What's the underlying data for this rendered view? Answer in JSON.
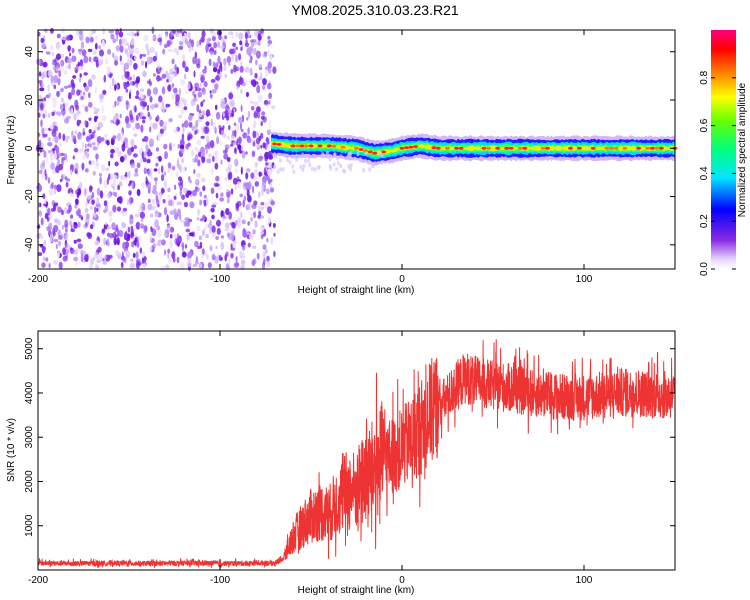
{
  "title": "YM08.2025.310.03.23.R21",
  "chart_data": [
    {
      "type": "heatmap",
      "xlabel": "Height of straight line (km)",
      "ylabel": "Frequency (Hz)",
      "xlim": [
        -200,
        150
      ],
      "ylim": [
        -50,
        49
      ],
      "xticks": [
        -200,
        -100,
        0,
        100
      ],
      "xtick_labels": [
        "-200",
        "-100",
        "0",
        "100"
      ],
      "yticks": [
        -40,
        -20,
        0,
        20,
        40
      ],
      "ytick_labels": [
        "-40",
        "-20",
        "0",
        "20",
        "40"
      ],
      "noise_region_x": [
        -200,
        -70
      ],
      "signal_start_x": -72,
      "carrier_frequency_trace": {
        "x": [
          -72,
          -60,
          -40,
          -25,
          -15,
          -5,
          0,
          10,
          20,
          40,
          60,
          80,
          100,
          120,
          150
        ],
        "y": [
          2,
          1,
          1,
          0,
          -2,
          -1,
          0,
          1,
          0,
          0,
          0,
          0,
          0,
          0,
          0
        ]
      },
      "colorbar": {
        "label": "Normalized spectral amplitude",
        "range": [
          0,
          1
        ],
        "ticks": [
          0.0,
          0.2,
          0.4,
          0.6,
          0.8
        ],
        "tick_labels": [
          "0.0",
          "0.2",
          "0.4",
          "0.6",
          "0.8"
        ]
      }
    },
    {
      "type": "line",
      "xlabel": "Height of straight line (km)",
      "ylabel": "SNR (10 * v/v)",
      "xlim": [
        -200,
        150
      ],
      "ylim": [
        0,
        5400
      ],
      "xticks": [
        -200,
        -100,
        0,
        100
      ],
      "xtick_labels": [
        "-200",
        "-100",
        "0",
        "100"
      ],
      "yticks": [
        1000,
        2000,
        3000,
        4000,
        5000
      ],
      "ytick_labels": [
        "1000",
        "2000",
        "3000",
        "4000",
        "5000"
      ],
      "series": [
        {
          "name": "SNR",
          "color": "#ee3333",
          "x": [
            -200,
            -180,
            -160,
            -140,
            -120,
            -100,
            -80,
            -70,
            -65,
            -60,
            -55,
            -50,
            -45,
            -40,
            -35,
            -30,
            -25,
            -20,
            -15,
            -10,
            -5,
            0,
            5,
            10,
            15,
            20,
            25,
            30,
            35,
            40,
            50,
            60,
            70,
            80,
            90,
            100,
            110,
            120,
            130,
            140,
            150
          ],
          "y": [
            150,
            140,
            150,
            140,
            150,
            140,
            150,
            150,
            250,
            700,
            950,
            1150,
            1250,
            1200,
            1500,
            1700,
            1700,
            2000,
            2150,
            2450,
            2500,
            2650,
            2850,
            3100,
            3400,
            3650,
            3850,
            4100,
            4300,
            4200,
            4100,
            4050,
            3950,
            3900,
            3850,
            3850,
            3900,
            3950,
            3950,
            3900,
            3900
          ]
        }
      ]
    }
  ]
}
